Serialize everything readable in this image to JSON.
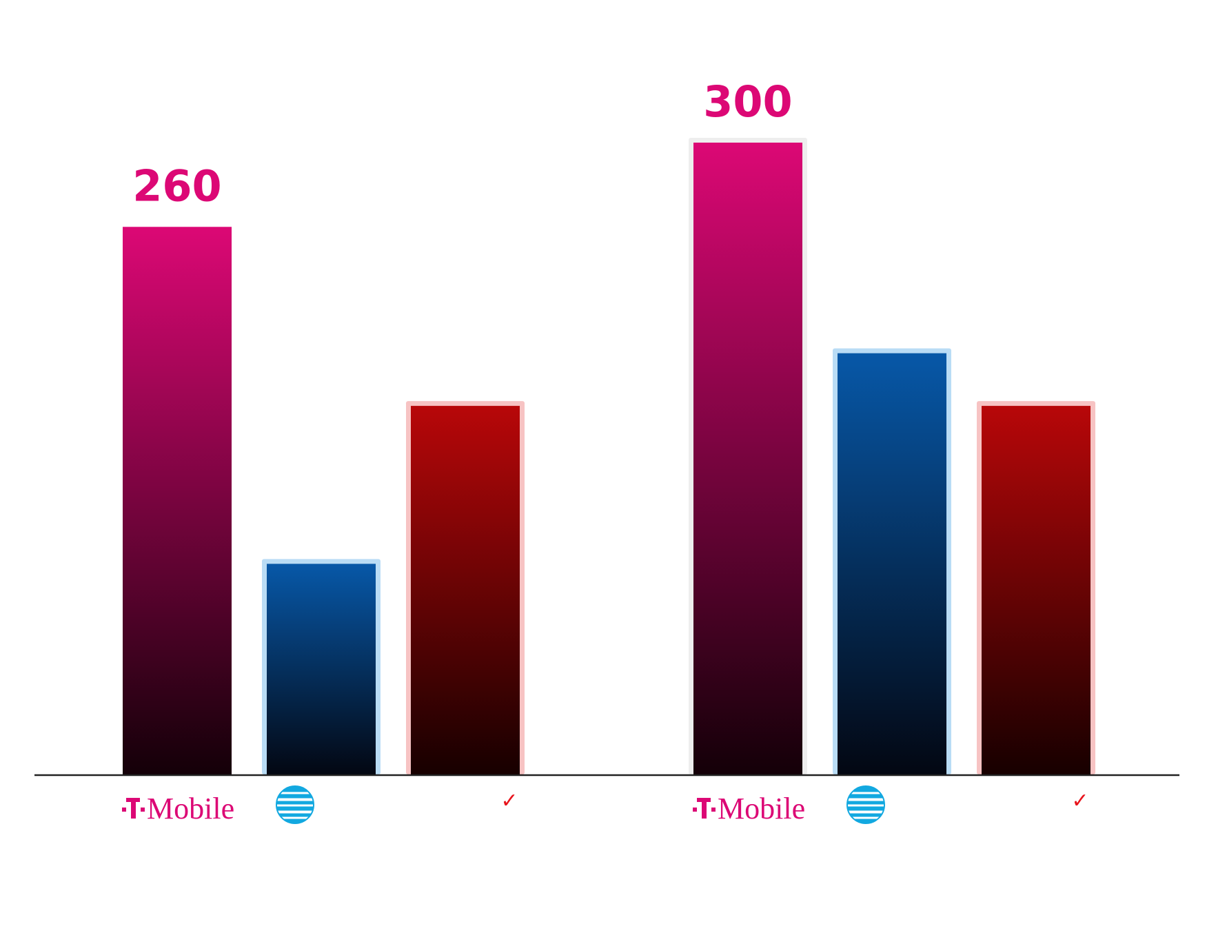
{
  "chart_data": {
    "type": "bar",
    "groups": [
      {
        "bars": [
          {
            "carrier": "T-Mobile",
            "value": 260,
            "label": "260"
          },
          {
            "carrier": "AT&T",
            "value": 100,
            "label": ""
          },
          {
            "carrier": "Verizon",
            "value": 175,
            "label": ""
          }
        ]
      },
      {
        "bars": [
          {
            "carrier": "T-Mobile",
            "value": 300,
            "label": "300"
          },
          {
            "carrier": "AT&T",
            "value": 200,
            "label": ""
          },
          {
            "carrier": "Verizon",
            "value": 175,
            "label": ""
          }
        ]
      }
    ],
    "ylim": [
      0,
      300
    ],
    "grid": false,
    "legend": "none",
    "axis_logos": [
      "T Mobile",
      "AT&T globe",
      "Verizon check"
    ]
  },
  "logos": {
    "tmobile_text": "Mobile",
    "verizon_mark": "✓"
  },
  "colors": {
    "tmobile_top": "#dc0875",
    "tmobile_bottom": "#140008",
    "tmobile_highlight_outline": "#eeeeee",
    "att_top": "#0758a8",
    "att_bottom": "#030712",
    "att_outline": "#b9dcf5",
    "verizon_top": "#b80709",
    "verizon_bottom": "#170000",
    "verizon_outline": "#f7c3c3",
    "att_logo": "#12a8e0",
    "verizon_check": "#e8141c",
    "baseline": "#222222"
  }
}
